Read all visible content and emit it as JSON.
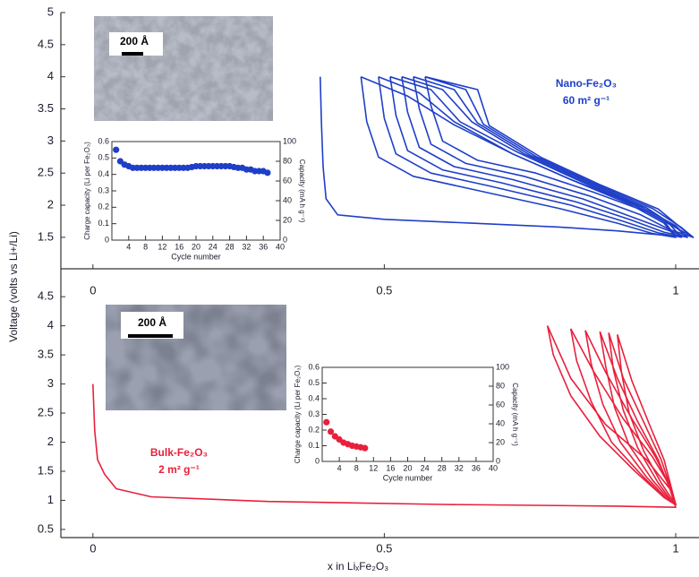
{
  "chart_data": [
    {
      "type": "line",
      "ylabel": "Voltage (volts vs Li+/Li)",
      "xlim": [
        -0.055,
        1.04
      ],
      "xticks": [
        0,
        0.5,
        1
      ],
      "ylim": [
        1.01,
        5
      ],
      "yticks": [
        1.5,
        2,
        2.5,
        3,
        3.5,
        4,
        4.5,
        5
      ],
      "annotations": [
        "Nano-Fe₂O₃",
        "60 m² g⁻¹",
        "200 Å"
      ],
      "series": [
        {
          "color": "#1f3fc8",
          "x": [
            0.39,
            0.392,
            0.395,
            0.4,
            0.42,
            0.5,
            0.65,
            0.8,
            0.9,
            0.96,
            1.0,
            0.98,
            0.92,
            0.82,
            0.72,
            0.62,
            0.54,
            0.46
          ],
          "values": [
            4.0,
            3.3,
            2.6,
            2.1,
            1.85,
            1.78,
            1.72,
            1.66,
            1.6,
            1.55,
            1.52,
            1.75,
            2.05,
            2.4,
            2.8,
            3.25,
            3.7,
            4.0
          ]
        },
        {
          "color": "#1f3fc8",
          "x": [
            0.46,
            0.47,
            0.49,
            0.55,
            0.65,
            0.8,
            0.9,
            0.96,
            1.0,
            0.98,
            0.92,
            0.82,
            0.72,
            0.62,
            0.56,
            0.49
          ],
          "values": [
            4.0,
            3.3,
            2.75,
            2.45,
            2.25,
            1.95,
            1.72,
            1.56,
            1.5,
            1.72,
            2.02,
            2.4,
            2.8,
            3.3,
            3.75,
            4.0
          ]
        },
        {
          "color": "#1f3fc8",
          "x": [
            0.49,
            0.5,
            0.52,
            0.58,
            0.68,
            0.82,
            0.91,
            0.97,
            1.01,
            0.99,
            0.93,
            0.83,
            0.73,
            0.63,
            0.58,
            0.51
          ],
          "values": [
            4.0,
            3.35,
            2.8,
            2.5,
            2.3,
            2.0,
            1.75,
            1.57,
            1.5,
            1.7,
            2.0,
            2.4,
            2.82,
            3.3,
            3.8,
            4.0
          ]
        },
        {
          "color": "#1f3fc8",
          "x": [
            0.51,
            0.52,
            0.54,
            0.6,
            0.7,
            0.83,
            0.92,
            0.98,
            1.02,
            1.0,
            0.94,
            0.84,
            0.74,
            0.65,
            0.6,
            0.53
          ],
          "values": [
            4.0,
            3.4,
            2.85,
            2.55,
            2.35,
            2.05,
            1.78,
            1.58,
            1.5,
            1.68,
            1.98,
            2.38,
            2.8,
            3.3,
            3.8,
            4.0
          ]
        },
        {
          "color": "#1f3fc8",
          "x": [
            0.53,
            0.54,
            0.56,
            0.62,
            0.72,
            0.84,
            0.93,
            0.99,
            1.02,
            1.0,
            0.95,
            0.85,
            0.75,
            0.66,
            0.62,
            0.55
          ],
          "values": [
            4.0,
            3.45,
            2.9,
            2.6,
            2.4,
            2.1,
            1.8,
            1.6,
            1.5,
            1.66,
            1.96,
            2.36,
            2.78,
            3.28,
            3.8,
            4.0
          ]
        },
        {
          "color": "#1f3fc8",
          "x": [
            0.55,
            0.56,
            0.58,
            0.64,
            0.74,
            0.85,
            0.94,
            0.99,
            1.03,
            1.01,
            0.96,
            0.86,
            0.76,
            0.67,
            0.64,
            0.57
          ],
          "values": [
            4.0,
            3.5,
            2.95,
            2.65,
            2.45,
            2.15,
            1.85,
            1.62,
            1.5,
            1.65,
            1.95,
            2.34,
            2.76,
            3.26,
            3.8,
            4.0
          ]
        },
        {
          "color": "#1f3fc8",
          "x": [
            0.57,
            0.58,
            0.6,
            0.66,
            0.76,
            0.86,
            0.95,
            1.0,
            1.03,
            1.01,
            0.97,
            0.87,
            0.77,
            0.68,
            0.66,
            0.57
          ],
          "values": [
            4.0,
            3.55,
            3.0,
            2.7,
            2.5,
            2.2,
            1.9,
            1.65,
            1.5,
            1.64,
            1.94,
            2.32,
            2.74,
            3.24,
            3.8,
            4.0
          ]
        }
      ]
    },
    {
      "type": "scatter",
      "xlabel": "Cycle number",
      "ylabel": "Charge capacity (Li per Fe₂O₃)",
      "y2label": "Capacity (mA h g⁻¹)",
      "xlim": [
        0,
        40
      ],
      "xticks": [
        4,
        8,
        12,
        16,
        20,
        24,
        28,
        32,
        36,
        40
      ],
      "ylim": [
        0,
        0.6
      ],
      "yticks": [
        0,
        0.1,
        0.2,
        0.3,
        0.4,
        0.5,
        0.6
      ],
      "y2lim": [
        0,
        100
      ],
      "y2ticks": [
        0,
        20,
        40,
        60,
        80,
        100
      ],
      "color": "#1f3fc8",
      "x": [
        1,
        2,
        3,
        4,
        5,
        6,
        7,
        8,
        9,
        10,
        11,
        12,
        13,
        14,
        15,
        16,
        17,
        18,
        19,
        20,
        21,
        22,
        23,
        24,
        25,
        26,
        27,
        28,
        29,
        30,
        31,
        32,
        33,
        34,
        35,
        36,
        37
      ],
      "values": [
        0.55,
        0.48,
        0.46,
        0.45,
        0.44,
        0.44,
        0.44,
        0.44,
        0.44,
        0.44,
        0.44,
        0.44,
        0.44,
        0.44,
        0.44,
        0.44,
        0.44,
        0.44,
        0.445,
        0.45,
        0.45,
        0.45,
        0.45,
        0.45,
        0.45,
        0.45,
        0.45,
        0.45,
        0.445,
        0.44,
        0.44,
        0.43,
        0.43,
        0.42,
        0.42,
        0.42,
        0.41
      ]
    },
    {
      "type": "line",
      "xlabel": "x in LiₓFe₂O₃",
      "xlim": [
        -0.055,
        1.04
      ],
      "xticks": [
        0,
        0.5,
        1
      ],
      "ylim": [
        0.36,
        4.98
      ],
      "yticks": [
        0.5,
        1,
        1.5,
        2,
        2.5,
        3,
        3.5,
        4,
        4.5
      ],
      "annotations": [
        "Bulk-Fe₂O₃",
        "2 m² g⁻¹",
        "200 Å"
      ],
      "series": [
        {
          "color": "#e8203c",
          "x": [
            0,
            0.003,
            0.008,
            0.02,
            0.04,
            0.1,
            0.3,
            0.6,
            0.9,
            1.0,
            0.99,
            0.95,
            0.88,
            0.82,
            0.78
          ],
          "values": [
            3.0,
            2.2,
            1.7,
            1.45,
            1.2,
            1.06,
            0.98,
            0.93,
            0.9,
            0.88,
            1.2,
            1.7,
            2.3,
            3.1,
            4.0
          ]
        },
        {
          "color": "#e8203c",
          "x": [
            0.78,
            0.79,
            0.82,
            0.87,
            0.93,
            0.98,
            1.0,
            0.99,
            0.96,
            0.91,
            0.86,
            0.82
          ],
          "values": [
            4.0,
            3.5,
            2.8,
            2.1,
            1.5,
            1.05,
            0.92,
            1.25,
            1.75,
            2.4,
            3.2,
            3.95
          ]
        },
        {
          "color": "#e8203c",
          "x": [
            0.82,
            0.83,
            0.855,
            0.89,
            0.94,
            0.98,
            1.0,
            0.99,
            0.965,
            0.925,
            0.88,
            0.845
          ],
          "values": [
            3.95,
            3.4,
            2.7,
            2.0,
            1.45,
            1.05,
            0.93,
            1.25,
            1.75,
            2.4,
            3.2,
            3.92
          ]
        },
        {
          "color": "#e8203c",
          "x": [
            0.845,
            0.855,
            0.875,
            0.905,
            0.95,
            0.985,
            1.0,
            0.99,
            0.97,
            0.935,
            0.9,
            0.87
          ],
          "values": [
            3.92,
            3.35,
            2.65,
            2.0,
            1.4,
            1.02,
            0.93,
            1.2,
            1.7,
            2.35,
            3.1,
            3.9
          ]
        },
        {
          "color": "#e8203c",
          "x": [
            0.87,
            0.88,
            0.895,
            0.92,
            0.96,
            0.99,
            1.0,
            0.992,
            0.975,
            0.945,
            0.91,
            0.885
          ],
          "values": [
            3.9,
            3.3,
            2.6,
            1.95,
            1.35,
            1.0,
            0.93,
            1.2,
            1.7,
            2.35,
            3.1,
            3.88
          ]
        },
        {
          "color": "#e8203c",
          "x": [
            0.885,
            0.893,
            0.91,
            0.935,
            0.97,
            0.992,
            1.0,
            0.993,
            0.98,
            0.955,
            0.925,
            0.9
          ],
          "values": [
            3.88,
            3.25,
            2.55,
            1.9,
            1.3,
            1.0,
            0.93,
            1.2,
            1.7,
            2.3,
            3.05,
            3.85
          ]
        },
        {
          "color": "#e8203c",
          "x": [
            0.9,
            0.907,
            0.92,
            0.945,
            0.975,
            0.995,
            1.0
          ],
          "values": [
            3.85,
            3.2,
            2.5,
            1.85,
            1.3,
            1.0,
            0.93
          ]
        }
      ]
    },
    {
      "type": "scatter",
      "xlabel": "Cycle number",
      "ylabel": "Charge capacity (Li per Fe₂O₃)",
      "y2label": "Capacity (mA h g⁻¹)",
      "xlim": [
        0,
        40
      ],
      "xticks": [
        4,
        8,
        12,
        16,
        20,
        24,
        28,
        32,
        36,
        40
      ],
      "ylim": [
        0,
        0.6
      ],
      "yticks": [
        0,
        0.1,
        0.2,
        0.3,
        0.4,
        0.5,
        0.6
      ],
      "y2lim": [
        0,
        100
      ],
      "y2ticks": [
        0,
        20,
        40,
        60,
        80,
        100
      ],
      "color": "#e8203c",
      "x": [
        1,
        2,
        3,
        4,
        5,
        6,
        7,
        8,
        9,
        10
      ],
      "values": [
        0.25,
        0.19,
        0.16,
        0.14,
        0.12,
        0.11,
        0.1,
        0.095,
        0.09,
        0.085
      ]
    }
  ]
}
